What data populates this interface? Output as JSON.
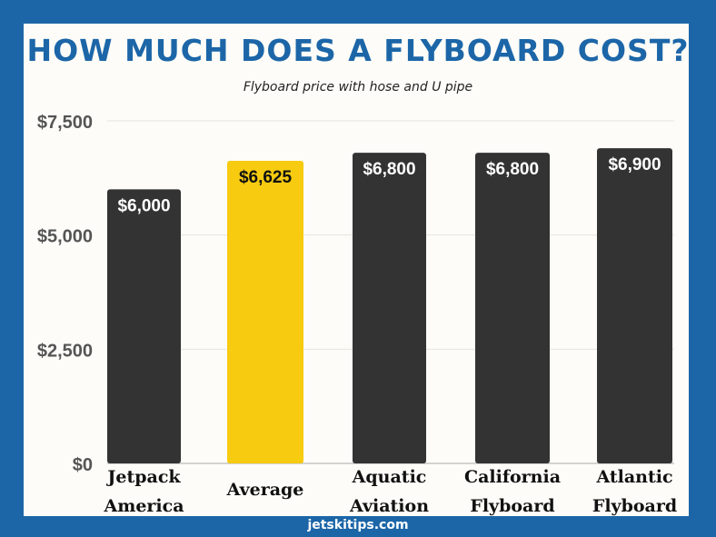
{
  "chart_data": {
    "type": "bar",
    "title": "HOW MUCH DOES A FLYBOARD COST?",
    "subtitle": "Flyboard price with hose and U pipe",
    "categories": [
      [
        "Jetpack",
        "America"
      ],
      [
        "Average"
      ],
      [
        "Aquatic",
        "Aviation"
      ],
      [
        "California",
        "Flyboard"
      ],
      [
        "Atlantic",
        "Flyboard"
      ]
    ],
    "values": [
      6000,
      6625,
      6800,
      6800,
      6900
    ],
    "data_labels": [
      "$6,000",
      "$6,625",
      "$6,800",
      "$6,800",
      "$6,900"
    ],
    "ylim": [
      0,
      7500
    ],
    "yticks": [
      0,
      2500,
      5000,
      7500
    ],
    "ytick_labels": [
      "$0",
      "$2,500",
      "$5,000",
      "$7,500"
    ],
    "grid": true,
    "colors": {
      "bar": "#333333",
      "highlight": "#f7cb10",
      "highlight_label": "#111111",
      "bar_label": "#ffffff",
      "border": "#1c66a8",
      "title": "#1c66a8"
    },
    "highlight_index": 1
  },
  "footer": "jetskitips.com"
}
